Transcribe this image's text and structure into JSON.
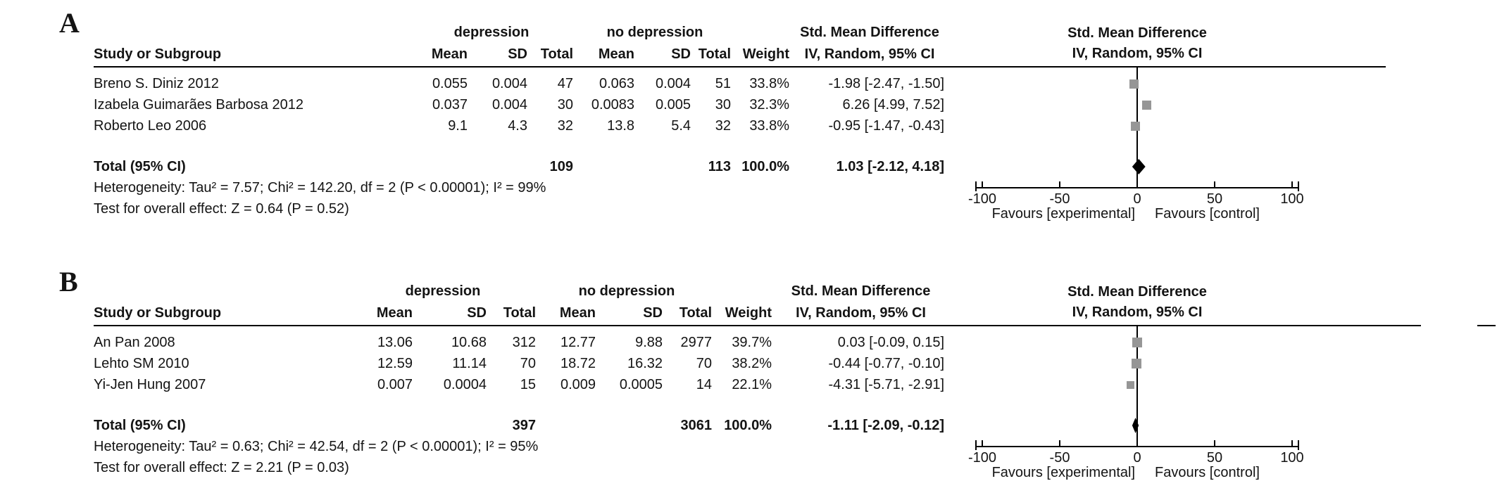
{
  "figure": {
    "panels": [
      {
        "label": "A",
        "groups": {
          "exp": "depression",
          "ctrl": "no depression",
          "effect": "Std. Mean Difference"
        },
        "columns": {
          "study": "Study or Subgroup",
          "mean": "Mean",
          "sd": "SD",
          "total": "Total",
          "weight": "Weight",
          "effect": "IV, Random, 95% CI"
        },
        "plot_header": {
          "line1": "Std. Mean Difference",
          "line2": "IV, Random, 95% CI"
        },
        "rows": [
          {
            "study": "Breno S. Diniz 2012",
            "mean1": "0.055",
            "sd1": "0.004",
            "total1": "47",
            "mean2": "0.063",
            "sd2": "0.004",
            "total2": "51",
            "weight": "33.8%",
            "ci": "-1.98 [-2.47, -1.50]"
          },
          {
            "study": "Izabela Guimarães Barbosa 2012",
            "mean1": "0.037",
            "sd1": "0.004",
            "total1": "30",
            "mean2": "0.0083",
            "sd2": "0.005",
            "total2": "30",
            "weight": "32.3%",
            "ci": "6.26 [4.99, 7.52]"
          },
          {
            "study": "Roberto Leo 2006",
            "mean1": "9.1",
            "sd1": "4.3",
            "total1": "32",
            "mean2": "13.8",
            "sd2": "5.4",
            "total2": "32",
            "weight": "33.8%",
            "ci": "-0.95 [-1.47, -0.43]"
          }
        ],
        "total_row": {
          "label": "Total (95% CI)",
          "total1": "109",
          "total2": "113",
          "weight": "100.0%",
          "ci": "1.03 [-2.12, 4.18]"
        },
        "heterogeneity": "Heterogeneity: Tau² = 7.57; Chi² = 142.20, df = 2 (P < 0.00001); I² = 99%",
        "overall_effect": "Test for overall effect: Z = 0.64 (P = 0.52)",
        "favours_left": "Favours [experimental]",
        "favours_right": "Favours [control]"
      },
      {
        "label": "B",
        "groups": {
          "exp": "depression",
          "ctrl": "no depression",
          "effect": "Std. Mean Difference"
        },
        "columns": {
          "study": "Study or Subgroup",
          "mean": "Mean",
          "sd": "SD",
          "total": "Total",
          "weight": "Weight",
          "effect": "IV, Random, 95% CI"
        },
        "plot_header": {
          "line1": "Std. Mean Difference",
          "line2": "IV, Random, 95% CI"
        },
        "rows": [
          {
            "study": "An Pan 2008",
            "mean1": "13.06",
            "sd1": "10.68",
            "total1": "312",
            "mean2": "12.77",
            "sd2": "9.88",
            "total2": "2977",
            "weight": "39.7%",
            "ci": "0.03 [-0.09, 0.15]"
          },
          {
            "study": "Lehto SM 2010",
            "mean1": "12.59",
            "sd1": "11.14",
            "total1": "70",
            "mean2": "18.72",
            "sd2": "16.32",
            "total2": "70",
            "weight": "38.2%",
            "ci": "-0.44 [-0.77, -0.10]"
          },
          {
            "study": "Yi-Jen Hung 2007",
            "mean1": "0.007",
            "sd1": "0.0004",
            "total1": "15",
            "mean2": "0.009",
            "sd2": "0.0005",
            "total2": "14",
            "weight": "22.1%",
            "ci": "-4.31 [-5.71, -2.91]"
          }
        ],
        "total_row": {
          "label": "Total (95% CI)",
          "total1": "397",
          "total2": "3061",
          "weight": "100.0%",
          "ci": "-1.11 [-2.09, -0.12]"
        },
        "heterogeneity": "Heterogeneity: Tau² = 0.63; Chi² = 42.54, df = 2 (P < 0.00001); I² = 95%",
        "overall_effect": "Test for overall effect: Z = 2.21 (P = 0.03)",
        "favours_left": "Favours [experimental]",
        "favours_right": "Favours [control]"
      }
    ]
  },
  "chart_data": [
    {
      "type": "scatter",
      "subtype": "forest_plot",
      "title": "Std. Mean Difference",
      "effect_model": "IV, Random, 95% CI",
      "xlim": [
        -100,
        100
      ],
      "x_ticks": [
        -100,
        -50,
        0,
        50,
        100
      ],
      "grid": false,
      "marker_color": "#969696",
      "diamond_color": "#000000",
      "studies": [
        {
          "name": "Breno S. Diniz 2012",
          "exp_mean": 0.055,
          "exp_sd": 0.004,
          "exp_n": 47,
          "ctrl_mean": 0.063,
          "ctrl_sd": 0.004,
          "ctrl_n": 51,
          "weight_pct": 33.8,
          "smd": -1.98,
          "ci_low": -2.47,
          "ci_high": -1.5
        },
        {
          "name": "Izabela Guimarães Barbosa 2012",
          "exp_mean": 0.037,
          "exp_sd": 0.004,
          "exp_n": 30,
          "ctrl_mean": 0.0083,
          "ctrl_sd": 0.005,
          "ctrl_n": 30,
          "weight_pct": 32.3,
          "smd": 6.26,
          "ci_low": 4.99,
          "ci_high": 7.52
        },
        {
          "name": "Roberto Leo 2006",
          "exp_mean": 9.1,
          "exp_sd": 4.3,
          "exp_n": 32,
          "ctrl_mean": 13.8,
          "ctrl_sd": 5.4,
          "ctrl_n": 32,
          "weight_pct": 33.8,
          "smd": -0.95,
          "ci_low": -1.47,
          "ci_high": -0.43
        }
      ],
      "total": {
        "exp_n": 109,
        "ctrl_n": 113,
        "weight_pct": 100.0,
        "smd": 1.03,
        "ci_low": -2.12,
        "ci_high": 4.18
      },
      "favours": [
        "Favours [experimental]",
        "Favours [control]"
      ]
    },
    {
      "type": "scatter",
      "subtype": "forest_plot",
      "title": "Std. Mean Difference",
      "effect_model": "IV, Random, 95% CI",
      "xlim": [
        -100,
        100
      ],
      "x_ticks": [
        -100,
        -50,
        0,
        50,
        100
      ],
      "grid": false,
      "marker_color": "#969696",
      "diamond_color": "#000000",
      "studies": [
        {
          "name": "An Pan 2008",
          "exp_mean": 13.06,
          "exp_sd": 10.68,
          "exp_n": 312,
          "ctrl_mean": 12.77,
          "ctrl_sd": 9.88,
          "ctrl_n": 2977,
          "weight_pct": 39.7,
          "smd": 0.03,
          "ci_low": -0.09,
          "ci_high": 0.15
        },
        {
          "name": "Lehto SM 2010",
          "exp_mean": 12.59,
          "exp_sd": 11.14,
          "exp_n": 70,
          "ctrl_mean": 18.72,
          "ctrl_sd": 16.32,
          "ctrl_n": 70,
          "weight_pct": 38.2,
          "smd": -0.44,
          "ci_low": -0.77,
          "ci_high": -0.1
        },
        {
          "name": "Yi-Jen Hung 2007",
          "exp_mean": 0.007,
          "exp_sd": 0.0004,
          "exp_n": 15,
          "ctrl_mean": 0.009,
          "ctrl_sd": 0.0005,
          "ctrl_n": 14,
          "weight_pct": 22.1,
          "smd": -4.31,
          "ci_low": -5.71,
          "ci_high": -2.91
        }
      ],
      "total": {
        "exp_n": 397,
        "ctrl_n": 3061,
        "weight_pct": 100.0,
        "smd": -1.11,
        "ci_low": -2.09,
        "ci_high": -0.12
      },
      "favours": [
        "Favours [experimental]",
        "Favours [control]"
      ]
    }
  ]
}
